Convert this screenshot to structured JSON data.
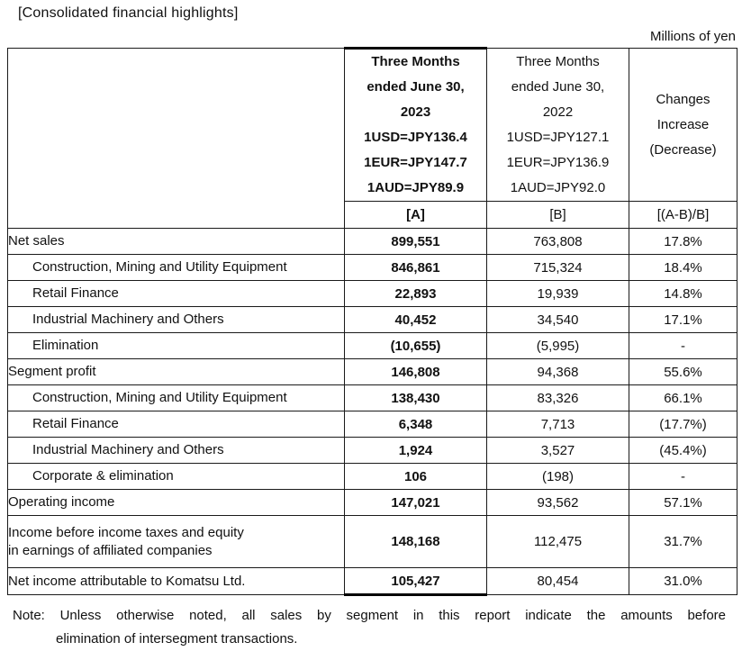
{
  "page": {
    "title": "[Consolidated financial highlights]",
    "unit_label": "Millions of yen"
  },
  "table": {
    "header": {
      "period_a": {
        "lines": [
          "Three Months",
          "ended June 30,",
          "2023",
          "1USD=JPY136.4",
          "1EUR=JPY147.7",
          "1AUD=JPY89.9"
        ],
        "tag": "[A]"
      },
      "period_b": {
        "lines": [
          "Three Months",
          "ended June 30,",
          "2022",
          "1USD=JPY127.1",
          "1EUR=JPY136.9",
          "1AUD=JPY92.0"
        ],
        "tag": "[B]"
      },
      "changes": {
        "lines": [
          "Changes",
          "Increase",
          "(Decrease)"
        ],
        "tag": "[(A-B)/B]"
      }
    },
    "rows": [
      {
        "label": "Net sales",
        "a": "899,551",
        "b": "763,808",
        "change": "17.8%"
      },
      {
        "label": "Construction, Mining and Utility Equipment",
        "a": "846,861",
        "b": "715,324",
        "change": "18.4%"
      },
      {
        "label": "Retail Finance",
        "a": "22,893",
        "b": "19,939",
        "change": "14.8%"
      },
      {
        "label": "Industrial Machinery and Others",
        "a": "40,452",
        "b": "34,540",
        "change": "17.1%"
      },
      {
        "label": "Elimination",
        "a": "(10,655)",
        "b": "(5,995)",
        "change": "-"
      },
      {
        "label": "Segment profit",
        "a": "146,808",
        "b": "94,368",
        "change": "55.6%"
      },
      {
        "label": "Construction, Mining and Utility Equipment",
        "a": "138,430",
        "b": "83,326",
        "change": "66.1%"
      },
      {
        "label": "Retail Finance",
        "a": "6,348",
        "b": "7,713",
        "change": "(17.7%)"
      },
      {
        "label": "Industrial Machinery and Others",
        "a": "1,924",
        "b": "3,527",
        "change": "(45.4%)"
      },
      {
        "label": "Corporate & elimination",
        "a": "106",
        "b": "(198)",
        "change": "-"
      },
      {
        "label": "Operating income",
        "a": "147,021",
        "b": "93,562",
        "change": "57.1%"
      },
      {
        "label": "Income before income taxes and equity",
        "label_line2": "in earnings of affiliated companies",
        "a": "148,168",
        "b": "112,475",
        "change": "31.7%"
      },
      {
        "label": "Net income attributable to Komatsu Ltd.",
        "a": "105,427",
        "b": "80,454",
        "change": "31.0%"
      }
    ]
  },
  "note": {
    "line1": "Note: Unless otherwise noted, all sales by segment in this report indicate the amounts before",
    "line2": "elimination of intersegment transactions."
  }
}
